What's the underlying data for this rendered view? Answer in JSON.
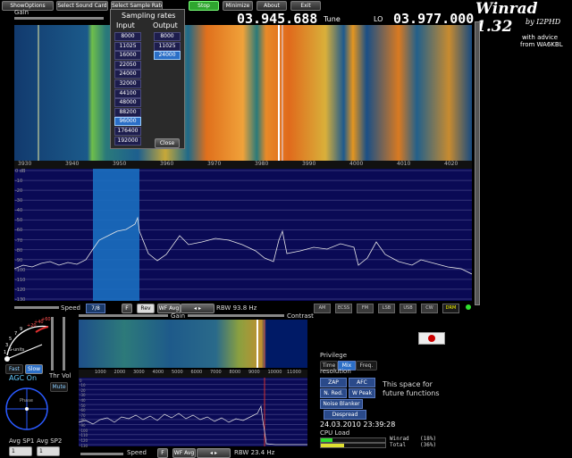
{
  "toolbar": {
    "show_options": "ShowOptions",
    "select_sound_card": "Select Sound Card",
    "select_sample_rate": "Select Sample Rate",
    "stop": "Stop",
    "minimize": "Minimize",
    "about": "About",
    "exit": "Exit"
  },
  "tuning": {
    "tune_freq": "03.945.688",
    "tune_label": "Tune",
    "lo_label": "LO",
    "lo_freq": "03.977.000"
  },
  "brand": {
    "title": "Winrad 1.32",
    "author": "by I2PHD",
    "advice_line1": "with advice",
    "advice_line2": "from WA6KBL"
  },
  "sampling_popup": {
    "title": "Sampling rates",
    "input_header": "Input",
    "output_header": "Output",
    "input_rates": [
      "8000",
      "11025",
      "16000",
      "22050",
      "24000",
      "32000",
      "44100",
      "48000",
      "88200",
      "96000",
      "176400",
      "192000"
    ],
    "input_selected": "96000",
    "output_rates": [
      "8000",
      "11025",
      "24000"
    ],
    "output_selected": "24000",
    "close_label": "Close"
  },
  "top_panel": {
    "gain_label": "Gain",
    "freq_ticks": [
      "3930",
      "3940",
      "3950",
      "3960",
      "3970",
      "3980",
      "3990",
      "4000",
      "4010",
      "4020"
    ],
    "db_ticks": [
      "0 dB",
      "-10",
      "-20",
      "-30",
      "-40",
      "-50",
      "-60",
      "-70",
      "-80",
      "-90",
      "-100",
      "-110",
      "-120",
      "-130"
    ]
  },
  "modes": [
    "AM",
    "ECSS",
    "FM",
    "LSB",
    "USB",
    "CW",
    "DRM"
  ],
  "speed_row": {
    "speed_label": "Speed",
    "speed_value": "7/8",
    "f_label": "F",
    "rev_label": "Rev",
    "wf_avg_label": "WF Avg",
    "rbw_text": "RBW 93.8 Hz"
  },
  "smeter": {
    "scale_labels": [
      "1",
      "3",
      "5",
      "7",
      "9",
      "+20",
      "+40",
      "+60"
    ],
    "s_units_label": "S-units",
    "fast_label": "Fast",
    "slow_label": "Slow",
    "agc_status": "AGC On",
    "thr_label": "Thr",
    "vol_label": "Vol",
    "mute_label": "Mute",
    "phase_label": "Phase",
    "avg_sp1_label": "Avg SP1",
    "avg_sp2_label": "Avg SP2",
    "avg_sp1_value": "1",
    "avg_sp2_value": "1"
  },
  "bottom_panel": {
    "gain_label": "Gain",
    "contrast_label": "Contrast",
    "freq_ticks": [
      "1000",
      "2000",
      "3000",
      "4000",
      "5000",
      "6000",
      "7000",
      "8000",
      "9000",
      "10000",
      "11000"
    ],
    "db_ticks": [
      "0",
      "-10",
      "-20",
      "-30",
      "-40",
      "-50",
      "-60",
      "-70",
      "-80",
      "-90",
      "-100",
      "-110",
      "-120",
      "-130"
    ],
    "speed_label": "Speed",
    "f_label": "F",
    "wf_avg_label": "WF Avg",
    "rbw_text": "RBW 23.4 Hz"
  },
  "right_panel": {
    "privilege_label": "Privilege",
    "time_label": "Time",
    "mix_label": "Mix",
    "freq_label": "Freq.",
    "resolution_label": "resolution",
    "zap_label": "ZAP",
    "afc_label": "AFC",
    "nred_label": "N. Red.",
    "wpeak_label": "W Peak",
    "noise_blanker_label": "Noise Blanker",
    "despread_label": "Despread",
    "future_line1": "This space for",
    "future_line2": "future functions",
    "datetime": "24.03.2010 23:39:28",
    "cpu_label": "CPU Load",
    "winrad_label": "Winrad",
    "winrad_value": "(18%)",
    "total_label": "Total",
    "total_value": "(36%)",
    "winrad_fraction": 0.18,
    "total_fraction": 0.36
  },
  "colors": {
    "accent_green": "#2fa52f",
    "spectrum_bg": "#0a0a55",
    "selection_blue": "#1a6ec0",
    "rec_red": "#cc0000"
  }
}
